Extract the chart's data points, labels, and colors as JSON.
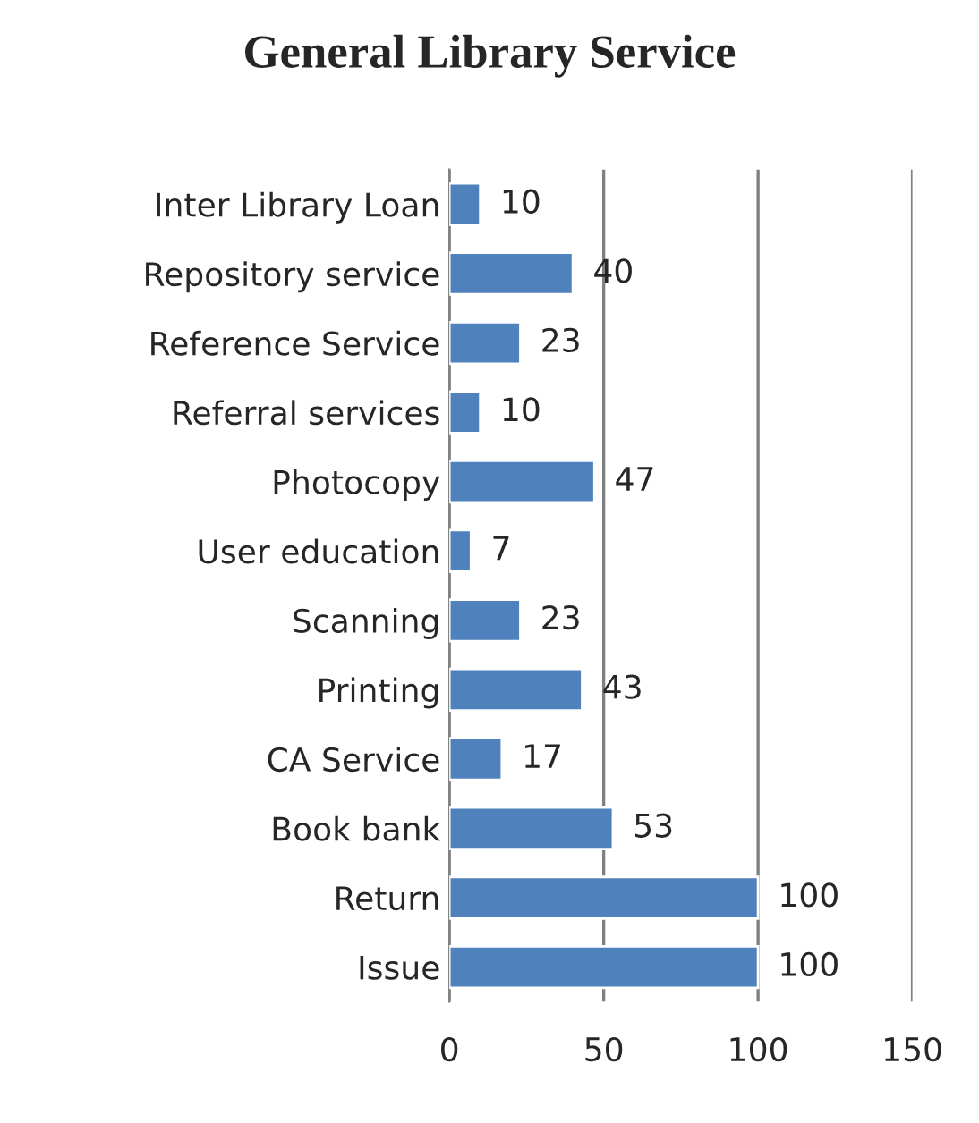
{
  "chart_data": {
    "type": "bar",
    "orientation": "horizontal",
    "title": "General Library Service",
    "categories": [
      "Inter Library Loan",
      "Repository service",
      "Reference Service",
      "Referral services",
      "Photocopy",
      "User education",
      "Scanning",
      "Printing",
      "CA Service",
      "Book bank",
      "Return",
      "Issue"
    ],
    "values": [
      10,
      40,
      23,
      10,
      47,
      7,
      23,
      43,
      17,
      53,
      100,
      100
    ],
    "color": "#4f81bd",
    "xlim": [
      0,
      150
    ],
    "xticks": [
      0,
      50,
      100,
      150
    ],
    "grid": "x",
    "data_labels": true
  }
}
